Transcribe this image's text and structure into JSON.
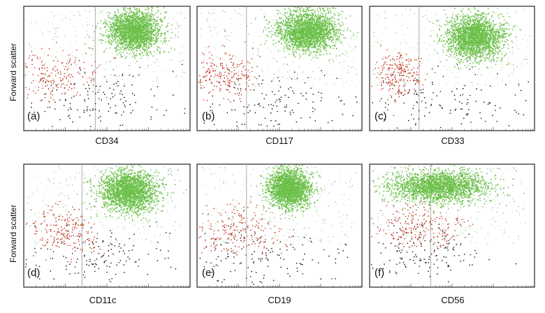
{
  "figure": {
    "ylabel": "Forward scatter",
    "colors": {
      "green": "#6cc04a",
      "red": "#c8412b",
      "black": "#1a1a1a",
      "blue": "#3f57a8",
      "gate_line": "#aaaaaa"
    }
  },
  "chart_data": [
    {
      "type": "scatter",
      "panel": "(a)",
      "xlabel": "CD34",
      "ylabel": "Forward scatter",
      "xscale": "log",
      "grid": false,
      "gate_x": 0.43,
      "populations": [
        {
          "color": "green",
          "center": [
            0.66,
            0.8
          ],
          "spread": [
            0.11,
            0.12
          ],
          "count": 2200,
          "note": "dense cluster, upper right"
        },
        {
          "color": "red",
          "center": [
            0.17,
            0.45
          ],
          "spread": [
            0.15,
            0.1
          ],
          "count": 220
        },
        {
          "color": "black",
          "center": [
            0.45,
            0.25
          ],
          "spread": [
            0.25,
            0.12
          ],
          "count": 140
        }
      ]
    },
    {
      "type": "scatter",
      "panel": "(b)",
      "xlabel": "CD117",
      "ylabel": "Forward scatter",
      "xscale": "log",
      "grid": false,
      "gate_x": 0.3,
      "populations": [
        {
          "color": "green",
          "center": [
            0.67,
            0.8
          ],
          "spread": [
            0.13,
            0.12
          ],
          "count": 2200,
          "note": "dense cluster, upper right"
        },
        {
          "color": "red",
          "center": [
            0.16,
            0.45
          ],
          "spread": [
            0.11,
            0.1
          ],
          "count": 220
        },
        {
          "color": "black",
          "center": [
            0.45,
            0.22
          ],
          "spread": [
            0.25,
            0.12
          ],
          "count": 140
        }
      ]
    },
    {
      "type": "scatter",
      "panel": "(c)",
      "xlabel": "CD33",
      "ylabel": "Forward scatter",
      "xscale": "log",
      "grid": false,
      "gate_x": 0.3,
      "populations": [
        {
          "color": "green",
          "center": [
            0.64,
            0.75
          ],
          "spread": [
            0.12,
            0.12
          ],
          "count": 2200,
          "note": "dense cluster, upper right"
        },
        {
          "color": "red",
          "center": [
            0.18,
            0.45
          ],
          "spread": [
            0.07,
            0.1
          ],
          "count": 220
        },
        {
          "color": "black",
          "center": [
            0.43,
            0.25
          ],
          "spread": [
            0.25,
            0.12
          ],
          "count": 140
        }
      ]
    },
    {
      "type": "scatter",
      "panel": "(d)",
      "xlabel": "CD11c",
      "ylabel": "Forward scatter",
      "xscale": "log",
      "grid": false,
      "gate_x": 0.35,
      "populations": [
        {
          "color": "green",
          "center": [
            0.63,
            0.78
          ],
          "spread": [
            0.12,
            0.12
          ],
          "count": 2200,
          "note": "dense cluster, upper right"
        },
        {
          "color": "red",
          "center": [
            0.25,
            0.45
          ],
          "spread": [
            0.11,
            0.1
          ],
          "count": 220
        },
        {
          "color": "black",
          "center": [
            0.45,
            0.25
          ],
          "spread": [
            0.25,
            0.12
          ],
          "count": 140
        }
      ]
    },
    {
      "type": "scatter",
      "panel": "(e)",
      "xlabel": "CD19",
      "ylabel": "Forward scatter",
      "xscale": "log",
      "grid": false,
      "gate_x": 0.3,
      "populations": [
        {
          "color": "green",
          "center": [
            0.56,
            0.8
          ],
          "spread": [
            0.09,
            0.11
          ],
          "count": 2200,
          "note": "dense cluster, upper middle"
        },
        {
          "color": "red",
          "center": [
            0.22,
            0.47
          ],
          "spread": [
            0.13,
            0.1
          ],
          "count": 220
        },
        {
          "color": "black",
          "center": [
            0.42,
            0.25
          ],
          "spread": [
            0.22,
            0.12
          ],
          "count": 140
        }
      ]
    },
    {
      "type": "scatter",
      "panel": "(f)",
      "xlabel": "CD56",
      "ylabel": "Forward scatter",
      "xscale": "log",
      "grid": false,
      "gate_x": 0.37,
      "populations": [
        {
          "color": "green",
          "center": [
            0.42,
            0.82
          ],
          "spread": [
            0.22,
            0.09
          ],
          "count": 2200,
          "note": "broad cluster across top"
        },
        {
          "color": "red",
          "center": [
            0.28,
            0.5
          ],
          "spread": [
            0.13,
            0.1
          ],
          "count": 220
        },
        {
          "color": "black",
          "center": [
            0.33,
            0.28
          ],
          "spread": [
            0.18,
            0.1
          ],
          "count": 140
        }
      ]
    }
  ]
}
